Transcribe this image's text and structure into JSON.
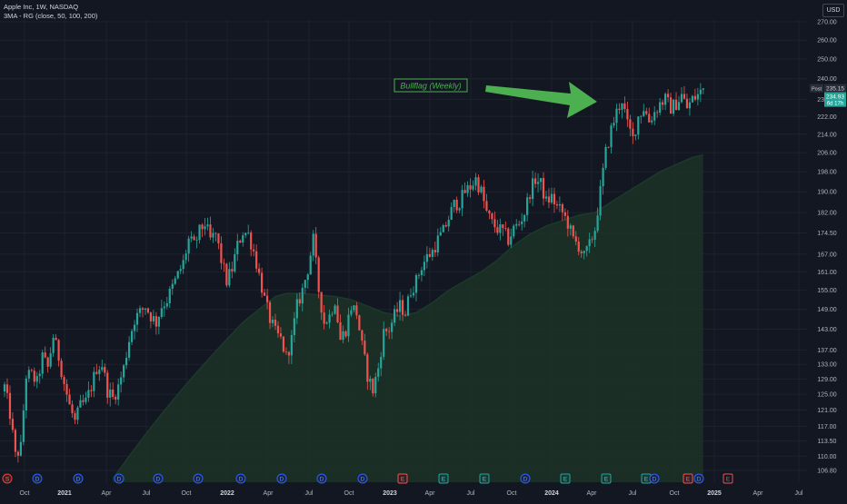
{
  "header": {
    "title": "Apple Inc, 1W, NASDAQ",
    "indicator": "3MA - RG (close, 50, 100, 200)",
    "currency": "USD"
  },
  "colors": {
    "background": "#131722",
    "up": "#26a69a",
    "down": "#ef5350",
    "ma_line": "#1b3a2b",
    "ma_fill": "#1c3226",
    "annotation": "#4caf50",
    "text": "#b2b5be"
  },
  "chart_data": {
    "type": "candlestick",
    "y_axis": {
      "scale": "log",
      "range": [
        105,
        275
      ],
      "ticks": [
        106.8,
        110.0,
        113.5,
        117.0,
        121.0,
        125.0,
        129.0,
        133.0,
        137.0,
        143.0,
        149.0,
        155.0,
        161.0,
        167.0,
        174.5,
        182.0,
        190.0,
        198.0,
        206.0,
        214.0,
        222.0,
        230.0,
        240.0,
        250.0,
        260.0,
        270.0
      ]
    },
    "x_axis": {
      "ticks": [
        "Oct",
        "2021",
        "Apr",
        "Jul",
        "Oct",
        "2022",
        "Apr",
        "Jul",
        "Oct",
        "2023",
        "Apr",
        "Jul",
        "Oct",
        "2024",
        "Apr",
        "Jul",
        "Oct",
        "2025",
        "Apr",
        "Jul"
      ]
    },
    "price_labels": {
      "post": "Post",
      "post_price": "235.15",
      "last_price": "234.93",
      "countdown": "6d 17h"
    },
    "waypoints": [
      [
        0,
        127
      ],
      [
        2,
        120
      ],
      [
        4,
        110
      ],
      [
        6,
        112
      ],
      [
        8,
        130
      ],
      [
        10,
        130
      ],
      [
        12,
        128
      ],
      [
        14,
        135
      ],
      [
        16,
        132
      ],
      [
        18,
        141
      ],
      [
        20,
        135
      ],
      [
        22,
        128
      ],
      [
        24,
        122
      ],
      [
        26,
        118
      ],
      [
        28,
        122
      ],
      [
        30,
        123
      ],
      [
        32,
        127
      ],
      [
        34,
        132
      ],
      [
        36,
        133
      ],
      [
        38,
        126
      ],
      [
        40,
        124
      ],
      [
        42,
        127
      ],
      [
        44,
        132
      ],
      [
        46,
        140
      ],
      [
        48,
        146
      ],
      [
        50,
        148
      ],
      [
        52,
        150
      ],
      [
        54,
        147
      ],
      [
        56,
        145
      ],
      [
        58,
        150
      ],
      [
        60,
        152
      ],
      [
        62,
        156
      ],
      [
        64,
        160
      ],
      [
        66,
        164
      ],
      [
        68,
        172
      ],
      [
        70,
        170
      ],
      [
        72,
        175
      ],
      [
        74,
        178
      ],
      [
        76,
        172
      ],
      [
        78,
        174
      ],
      [
        80,
        165
      ],
      [
        82,
        158
      ],
      [
        84,
        162
      ],
      [
        86,
        170
      ],
      [
        88,
        175
      ],
      [
        90,
        174
      ],
      [
        92,
        168
      ],
      [
        94,
        160
      ],
      [
        96,
        152
      ],
      [
        98,
        146
      ],
      [
        100,
        142
      ],
      [
        102,
        140
      ],
      [
        104,
        135
      ],
      [
        106,
        140
      ],
      [
        108,
        150
      ],
      [
        110,
        155
      ],
      [
        112,
        162
      ],
      [
        114,
        172
      ],
      [
        116,
        155
      ],
      [
        118,
        145
      ],
      [
        120,
        147
      ],
      [
        122,
        152
      ],
      [
        124,
        140
      ],
      [
        126,
        143
      ],
      [
        128,
        150
      ],
      [
        130,
        148
      ],
      [
        132,
        138
      ],
      [
        134,
        130
      ],
      [
        136,
        126
      ],
      [
        138,
        132
      ],
      [
        140,
        142
      ],
      [
        142,
        143
      ],
      [
        144,
        147
      ],
      [
        146,
        150
      ],
      [
        148,
        148
      ],
      [
        150,
        155
      ],
      [
        152,
        158
      ],
      [
        154,
        163
      ],
      [
        156,
        166
      ],
      [
        158,
        168
      ],
      [
        160,
        172
      ],
      [
        162,
        175
      ],
      [
        164,
        180
      ],
      [
        166,
        185
      ],
      [
        168,
        186
      ],
      [
        170,
        190
      ],
      [
        172,
        192
      ],
      [
        174,
        195
      ],
      [
        176,
        190
      ],
      [
        178,
        182
      ],
      [
        180,
        178
      ],
      [
        182,
        176
      ],
      [
        184,
        175
      ],
      [
        186,
        172
      ],
      [
        188,
        176
      ],
      [
        190,
        178
      ],
      [
        192,
        182
      ],
      [
        194,
        190
      ],
      [
        196,
        195
      ],
      [
        198,
        193
      ],
      [
        200,
        186
      ],
      [
        202,
        188
      ],
      [
        204,
        184
      ],
      [
        206,
        182
      ],
      [
        208,
        178
      ],
      [
        210,
        172
      ],
      [
        212,
        170
      ],
      [
        214,
        166
      ],
      [
        216,
        170
      ],
      [
        218,
        176
      ],
      [
        220,
        190
      ],
      [
        222,
        206
      ],
      [
        224,
        216
      ],
      [
        226,
        224
      ],
      [
        228,
        230
      ],
      [
        230,
        218
      ],
      [
        232,
        212
      ],
      [
        234,
        222
      ],
      [
        236,
        226
      ],
      [
        238,
        220
      ],
      [
        240,
        224
      ],
      [
        242,
        228
      ],
      [
        244,
        230
      ],
      [
        246,
        226
      ],
      [
        248,
        228
      ],
      [
        250,
        232
      ],
      [
        252,
        226
      ],
      [
        254,
        230
      ],
      [
        256,
        232
      ],
      [
        258,
        235.15
      ]
    ],
    "ma200": [
      [
        40,
        105
      ],
      [
        46,
        110
      ],
      [
        52,
        115
      ],
      [
        58,
        120
      ],
      [
        64,
        125
      ],
      [
        70,
        130
      ],
      [
        76,
        135
      ],
      [
        82,
        140
      ],
      [
        88,
        145
      ],
      [
        94,
        149
      ],
      [
        100,
        153
      ],
      [
        104,
        154
      ],
      [
        110,
        154
      ],
      [
        116,
        153.5
      ],
      [
        122,
        153
      ],
      [
        128,
        152
      ],
      [
        134,
        150
      ],
      [
        140,
        148
      ],
      [
        146,
        147
      ],
      [
        152,
        148
      ],
      [
        158,
        151
      ],
      [
        164,
        155
      ],
      [
        170,
        158
      ],
      [
        176,
        161
      ],
      [
        182,
        165
      ],
      [
        188,
        170
      ],
      [
        194,
        174
      ],
      [
        200,
        177
      ],
      [
        206,
        179
      ],
      [
        212,
        181
      ],
      [
        218,
        182
      ],
      [
        224,
        186
      ],
      [
        230,
        190
      ],
      [
        236,
        194
      ],
      [
        242,
        198
      ],
      [
        248,
        201
      ],
      [
        254,
        204
      ],
      [
        258,
        205
      ]
    ],
    "annotations": [
      {
        "text": "Bullflag (Weekly)"
      }
    ],
    "events": [
      {
        "label": "S",
        "kind": "split"
      },
      {
        "label": "D",
        "kind": "dividend"
      },
      {
        "label": "D",
        "kind": "dividend"
      },
      {
        "label": "D",
        "kind": "dividend"
      },
      {
        "label": "D",
        "kind": "dividend"
      },
      {
        "label": "D",
        "kind": "dividend"
      },
      {
        "label": "D",
        "kind": "dividend"
      },
      {
        "label": "D",
        "kind": "dividend"
      },
      {
        "label": "D",
        "kind": "dividend"
      },
      {
        "label": "D",
        "kind": "dividend"
      },
      {
        "label": "E",
        "kind": "earnings-down"
      },
      {
        "label": "E",
        "kind": "earnings-up"
      },
      {
        "label": "E",
        "kind": "earnings-up"
      },
      {
        "label": "D",
        "kind": "dividend"
      },
      {
        "label": "E",
        "kind": "earnings-up"
      },
      {
        "label": "E",
        "kind": "earnings-up"
      },
      {
        "label": "E",
        "kind": "earnings-up"
      },
      {
        "label": "D",
        "kind": "dividend"
      },
      {
        "label": "E",
        "kind": "earnings-down"
      },
      {
        "label": "D",
        "kind": "dividend"
      },
      {
        "label": "E",
        "kind": "earnings-upcoming"
      }
    ]
  }
}
